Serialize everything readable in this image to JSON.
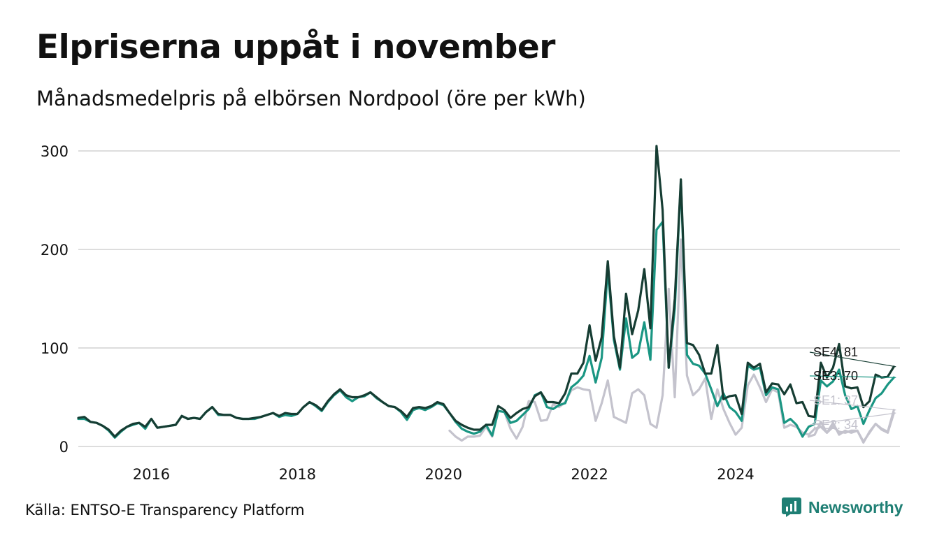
{
  "title": "Elpriserna uppåt i november",
  "subtitle": "Månadsmedelpris på elbörsen Nordpool (öre per kWh)",
  "source": "Källa: ENTSO-E Transparency Platform",
  "brand": "Newsworthy",
  "colors": {
    "SE4": "#163d33",
    "SE3": "#1a9683",
    "SE1": "#c4c3cd",
    "SE2": "#c4c3cd",
    "grid": "#dddddd",
    "brand": "#1f7f74"
  },
  "chart_data": {
    "type": "line",
    "title": "Elpriserna uppåt i november",
    "subtitle": "Månadsmedelpris på elbörsen Nordpool (öre per kWh)",
    "xlabel": "",
    "ylabel": "",
    "x_start": "2015-01",
    "x_end": "2025-11",
    "xlim": [
      2015.0,
      2026.25
    ],
    "ylim": [
      0,
      310
    ],
    "yticks": [
      0,
      100,
      200,
      300
    ],
    "xticks": [
      {
        "value": 2016.0,
        "label": "2016"
      },
      {
        "value": 2018.0,
        "label": "2018"
      },
      {
        "value": 2020.0,
        "label": "2020"
      },
      {
        "value": 2022.0,
        "label": "2022"
      },
      {
        "value": 2024.0,
        "label": "2024"
      }
    ],
    "grid": true,
    "legend": "end-of-line labels",
    "series": [
      {
        "name": "SE4",
        "end_label": "SE4: 81",
        "values": [
          29,
          30,
          25,
          24,
          21,
          17,
          10,
          16,
          20,
          23,
          24,
          20,
          28,
          19,
          20,
          21,
          22,
          31,
          28,
          29,
          28,
          35,
          40,
          33,
          32,
          32,
          29,
          28,
          28,
          29,
          30,
          32,
          34,
          31,
          34,
          33,
          33,
          40,
          45,
          42,
          37,
          46,
          53,
          58,
          52,
          50,
          50,
          52,
          55,
          50,
          45,
          41,
          40,
          36,
          30,
          39,
          40,
          39,
          41,
          45,
          43,
          34,
          26,
          22,
          19,
          17,
          17,
          22,
          22,
          41,
          37,
          29,
          34,
          38,
          40,
          51,
          55,
          45,
          45,
          44,
          54,
          74,
          74,
          85,
          123,
          87,
          111,
          188,
          112,
          80,
          155,
          114,
          138,
          180,
          120,
          305,
          240,
          80,
          150,
          271,
          105,
          103,
          93,
          74,
          74,
          103,
          48,
          51,
          52,
          33,
          85,
          80,
          84,
          55,
          64,
          63,
          53,
          63,
          44,
          45,
          31,
          30,
          85,
          70,
          80,
          104,
          61,
          59,
          60,
          40,
          46,
          73,
          70,
          71,
          81
        ]
      },
      {
        "name": "SE3",
        "end_label": "SE3: 70",
        "values": [
          28,
          28,
          25,
          24,
          21,
          16,
          9,
          15,
          20,
          22,
          24,
          18,
          28,
          19,
          20,
          21,
          22,
          31,
          28,
          29,
          28,
          35,
          40,
          32,
          32,
          32,
          29,
          28,
          28,
          28,
          30,
          32,
          34,
          30,
          32,
          31,
          33,
          40,
          45,
          41,
          36,
          45,
          52,
          57,
          50,
          46,
          50,
          51,
          55,
          49,
          45,
          41,
          40,
          35,
          27,
          37,
          39,
          37,
          40,
          44,
          42,
          34,
          25,
          18,
          15,
          13,
          15,
          22,
          11,
          36,
          35,
          24,
          26,
          32,
          38,
          52,
          55,
          40,
          38,
          42,
          44,
          60,
          65,
          72,
          92,
          65,
          90,
          180,
          108,
          78,
          130,
          90,
          95,
          126,
          88,
          220,
          228,
          80,
          140,
          269,
          93,
          84,
          82,
          74,
          58,
          41,
          54,
          40,
          35,
          26,
          82,
          78,
          80,
          52,
          60,
          58,
          24,
          28,
          22,
          10,
          20,
          23,
          67,
          61,
          66,
          78,
          52,
          38,
          41,
          23,
          37,
          49,
          54,
          63,
          70
        ]
      },
      {
        "name": "SE1",
        "end_label": "SE1: 37",
        "values": [
          null,
          null,
          null,
          null,
          null,
          null,
          null,
          null,
          null,
          null,
          null,
          null,
          null,
          null,
          null,
          null,
          null,
          null,
          null,
          null,
          null,
          null,
          null,
          null,
          null,
          null,
          null,
          null,
          null,
          null,
          null,
          null,
          null,
          null,
          null,
          null,
          null,
          null,
          null,
          null,
          null,
          null,
          null,
          null,
          null,
          null,
          null,
          null,
          null,
          null,
          null,
          null,
          null,
          null,
          null,
          null,
          null,
          null,
          null,
          null,
          null,
          null,
          null,
          null,
          null,
          null,
          null,
          null,
          null,
          null,
          null,
          null,
          null,
          null,
          null,
          null,
          null,
          null,
          null,
          null,
          null,
          null,
          null,
          null,
          null,
          null,
          null,
          null,
          null,
          null,
          null,
          null,
          null,
          null,
          null,
          null,
          null,
          null,
          null,
          null,
          null,
          null,
          null,
          null,
          null,
          null,
          null,
          null,
          null,
          null,
          null,
          null,
          null,
          null,
          null,
          null,
          null,
          null,
          null,
          null,
          10,
          12,
          25,
          14,
          20,
          15,
          14,
          16,
          16,
          5,
          14,
          23,
          18,
          15,
          37
        ]
      },
      {
        "name": "SE2",
        "end_label": "SE2: 34",
        "values": [
          null,
          null,
          null,
          null,
          null,
          null,
          null,
          null,
          null,
          null,
          null,
          null,
          null,
          null,
          null,
          null,
          null,
          null,
          null,
          null,
          null,
          null,
          null,
          null,
          null,
          null,
          null,
          null,
          null,
          null,
          null,
          null,
          null,
          null,
          null,
          null,
          null,
          null,
          null,
          null,
          null,
          null,
          null,
          null,
          null,
          null,
          null,
          null,
          null,
          null,
          null,
          null,
          null,
          null,
          null,
          null,
          null,
          null,
          null,
          null,
          null,
          16,
          10,
          6,
          10,
          10,
          11,
          20,
          10,
          36,
          35,
          18,
          8,
          20,
          46,
          45,
          26,
          27,
          43,
          40,
          45,
          57,
          60,
          58,
          57,
          26,
          44,
          67,
          30,
          27,
          24,
          54,
          58,
          52,
          23,
          19,
          52,
          160,
          50,
          210,
          72,
          52,
          58,
          69,
          28,
          58,
          38,
          24,
          12,
          19,
          62,
          73,
          60,
          45,
          58,
          55,
          19,
          22,
          20,
          14,
          12,
          18,
          20,
          14,
          24,
          12,
          16,
          14,
          16,
          4,
          15,
          23,
          17,
          14,
          34
        ]
      }
    ]
  }
}
